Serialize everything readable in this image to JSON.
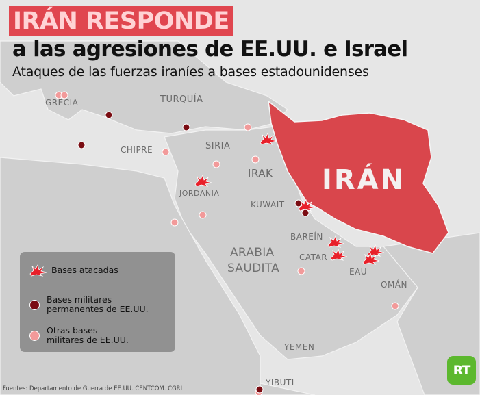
{
  "header": {
    "title": "IRÁN RESPONDE",
    "subtitle": "a las agresiones de EE.UU. e Israel",
    "tagline": "Ataques de las fuerzas iraníes a bases estadounidenses"
  },
  "map": {
    "highlighted_country": "IRÁN",
    "labels": {
      "grecia": "GRECIA",
      "turquia": "TURQUÍA",
      "chipre": "CHIPRE",
      "siria": "SIRIA",
      "irak": "IRAK",
      "jordania": "JORDANIA",
      "kuwait": "KUWAIT",
      "arabia1": "ARABIA",
      "arabia2": "SAUDITA",
      "barein": "BAREÍN",
      "catar": "CATAR",
      "eau": "EAU",
      "oman": "OMÁN",
      "yemen": "YEMEN",
      "yibuti": "YIBUTI"
    }
  },
  "legend": {
    "attacked": "Bases atacadas",
    "permanent_line1": "Bases militares",
    "permanent_line2": "permanentes de EE.UU.",
    "other_line1": "Otras bases",
    "other_line2": "militares de EE.UU."
  },
  "footer": {
    "sources": "Fuentes: Departamento de Guerra de EE.UU. CENTCOM. CGRI",
    "logo": "RT"
  },
  "colors": {
    "title_bg": "#e0464f",
    "iran": "#d9464c",
    "attacked": "#e8202a",
    "permanent": "#7a0c12",
    "other": "#f29a9a",
    "logo": "#5cb82e"
  }
}
